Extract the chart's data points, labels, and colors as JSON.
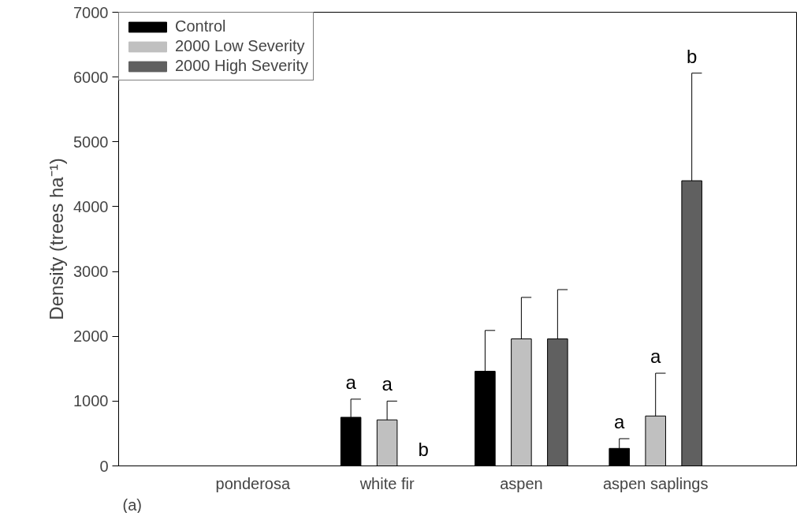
{
  "chart_data": {
    "type": "bar",
    "ylabel": "Density (trees ha⁻¹)",
    "categories": [
      "ponderosa",
      "white fir",
      "aspen",
      "aspen saplings"
    ],
    "series": [
      {
        "name": "Control",
        "color": "#000000",
        "values": [
          0,
          750,
          1460,
          270
        ],
        "errors": [
          null,
          [
            750,
            1030
          ],
          [
            1460,
            2090
          ],
          [
            270,
            420
          ]
        ],
        "value_labels": [
          null,
          "a",
          null,
          "a"
        ]
      },
      {
        "name": "2000 Low Severity",
        "color": "#c0c0c0",
        "values": [
          0,
          710,
          1960,
          770
        ],
        "errors": [
          null,
          [
            710,
            1000
          ],
          [
            1960,
            2600
          ],
          [
            770,
            1430
          ]
        ],
        "value_labels": [
          null,
          "a",
          null,
          "a"
        ]
      },
      {
        "name": "2000 High Severity",
        "color": "#606060",
        "values": [
          0,
          0,
          1960,
          4400
        ],
        "errors": [
          null,
          null,
          [
            1960,
            2720
          ],
          [
            4400,
            6060
          ]
        ],
        "value_labels": [
          null,
          "b",
          null,
          null
        ]
      }
    ],
    "ylim": [
      0,
      7000
    ],
    "yticks": [
      0,
      1000,
      2000,
      3000,
      4000,
      5000,
      6000,
      7000
    ],
    "grid": false,
    "legend": "top left",
    "annotations": [
      "b",
      "(a)"
    ]
  }
}
